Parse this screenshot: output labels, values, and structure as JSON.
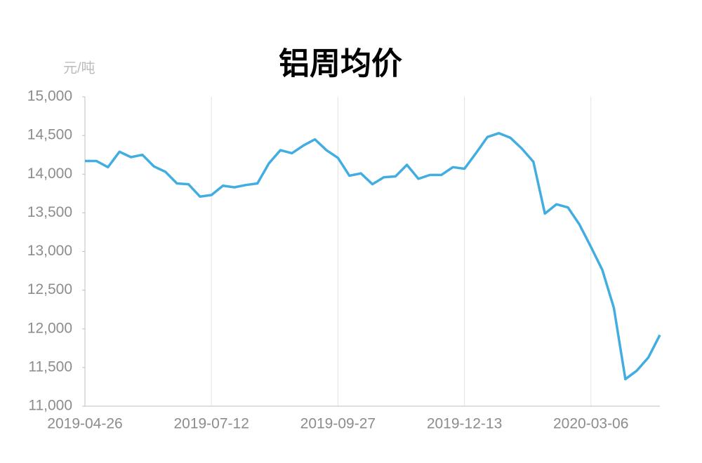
{
  "chart_data": {
    "type": "line",
    "title": "铝周均价",
    "y_label": "元/吨",
    "categories": [
      "2019-04-26",
      null,
      null,
      null,
      null,
      null,
      null,
      null,
      null,
      null,
      null,
      "2019-07-12",
      null,
      null,
      null,
      null,
      null,
      null,
      null,
      null,
      null,
      null,
      "2019-09-27",
      null,
      null,
      null,
      null,
      null,
      null,
      null,
      null,
      null,
      null,
      "2019-12-13",
      null,
      null,
      null,
      null,
      null,
      null,
      null,
      null,
      null,
      null,
      "2020-03-06",
      null,
      null,
      null,
      null,
      null,
      null
    ],
    "series": [
      {
        "name": "铝周均价",
        "color": "#41ade0",
        "values": [
          14170,
          14170,
          14090,
          14290,
          14220,
          14250,
          14100,
          14030,
          13880,
          13870,
          13710,
          13730,
          13850,
          13830,
          13860,
          13880,
          14140,
          14310,
          14270,
          14370,
          14450,
          14310,
          14210,
          13980,
          14010,
          13870,
          13960,
          13970,
          14120,
          13940,
          13990,
          13990,
          14090,
          14070,
          14270,
          14480,
          14530,
          14470,
          14330,
          14160,
          13490,
          13610,
          13570,
          13350,
          13060,
          12760,
          12270,
          11350,
          11460,
          11630,
          11920
        ]
      }
    ],
    "ylim": [
      11000,
      15000
    ],
    "yticks": [
      {
        "value": 11000,
        "label": "11,000"
      },
      {
        "value": 11500,
        "label": "11,500"
      },
      {
        "value": 12000,
        "label": "12,000"
      },
      {
        "value": 12500,
        "label": "12,500"
      },
      {
        "value": 13000,
        "label": "13,000"
      },
      {
        "value": 13500,
        "label": "13,500"
      },
      {
        "value": 14000,
        "label": "14,000"
      },
      {
        "value": 14500,
        "label": "14,500"
      },
      {
        "value": 15000,
        "label": "15,000"
      }
    ],
    "grid": "x"
  }
}
